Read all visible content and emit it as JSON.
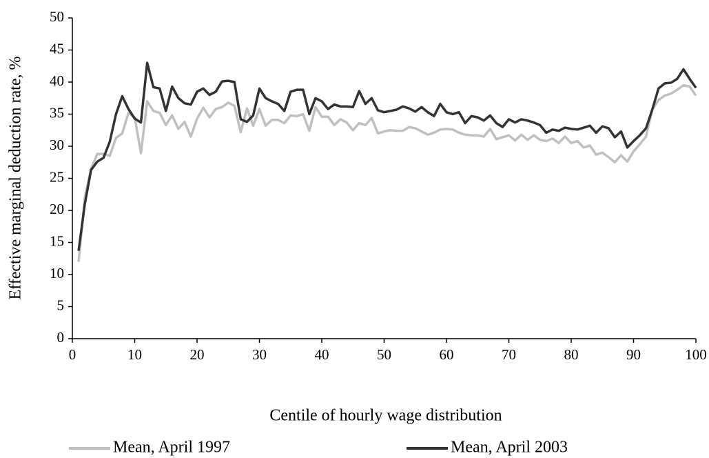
{
  "chart_data": {
    "type": "line",
    "xlabel": "Centile of hourly wage distribution",
    "ylabel": "Effective marginal deduction rate, %",
    "x": [
      1,
      2,
      3,
      4,
      5,
      6,
      7,
      8,
      9,
      10,
      11,
      12,
      13,
      14,
      15,
      16,
      17,
      18,
      19,
      20,
      21,
      22,
      23,
      24,
      25,
      26,
      27,
      28,
      29,
      30,
      31,
      32,
      33,
      34,
      35,
      36,
      37,
      38,
      39,
      40,
      41,
      42,
      43,
      44,
      45,
      46,
      47,
      48,
      49,
      50,
      51,
      52,
      53,
      54,
      55,
      56,
      57,
      58,
      59,
      60,
      61,
      62,
      63,
      64,
      65,
      66,
      67,
      68,
      69,
      70,
      71,
      72,
      73,
      74,
      75,
      76,
      77,
      78,
      79,
      80,
      81,
      82,
      83,
      84,
      85,
      86,
      87,
      88,
      89,
      90,
      91,
      92,
      93,
      94,
      95,
      96,
      97,
      98,
      99,
      100
    ],
    "series": [
      {
        "name": "Mean, April 1997",
        "color": "#c0c0c0",
        "values": [
          12,
          22,
          26.5,
          28.8,
          28.8,
          28.5,
          31.3,
          32,
          35.2,
          34.5,
          28.9,
          37,
          35.5,
          35.2,
          33.3,
          34.8,
          32.7,
          33.8,
          31.5,
          34.3,
          36,
          34.5,
          35.8,
          36.1,
          36.8,
          36.3,
          32.2,
          35.9,
          33.2,
          35.8,
          33.2,
          34.1,
          34.1,
          33.6,
          34.8,
          34.7,
          35,
          32.4,
          36.1,
          34.6,
          34.6,
          33.3,
          34.2,
          33.7,
          32.5,
          33.6,
          33.3,
          34.4,
          32,
          32.3,
          32.5,
          32.4,
          32.4,
          33,
          32.8,
          32.3,
          31.8,
          32.1,
          32.6,
          32.7,
          32.6,
          32.1,
          31.8,
          31.7,
          31.7,
          31.5,
          32.7,
          31.1,
          31.4,
          31.7,
          30.9,
          31.8,
          31,
          31.7,
          31,
          30.8,
          31.2,
          30.5,
          31.5,
          30.5,
          30.8,
          29.8,
          30.1,
          28.7,
          29,
          28.3,
          27.5,
          28.6,
          27.6,
          29.2,
          30.3,
          31.5,
          35.7,
          37.2,
          37.9,
          38.2,
          38.8,
          39.5,
          39.3,
          37.9
        ]
      },
      {
        "name": "Mean, April 2003",
        "color": "#333333",
        "values": [
          13.7,
          21,
          26.3,
          27.6,
          28.2,
          30.7,
          35,
          37.8,
          35.8,
          34.3,
          33.7,
          43,
          39.2,
          39,
          35.5,
          39.3,
          37.5,
          36.7,
          36.5,
          38.5,
          39,
          38,
          38.5,
          40.1,
          40.2,
          40,
          34.2,
          33.8,
          34.8,
          39,
          37.5,
          37,
          36.6,
          35.5,
          38.5,
          38.8,
          38.8,
          35,
          37.5,
          37,
          35.8,
          36.5,
          36.2,
          36.2,
          36.1,
          38.6,
          36.6,
          37.5,
          35.6,
          35.3,
          35.5,
          35.7,
          36.2,
          35.9,
          35.4,
          36.1,
          35.3,
          34.7,
          36.6,
          35.3,
          35,
          35.3,
          33.6,
          34.7,
          34.5,
          34,
          34.8,
          33.6,
          33,
          34.2,
          33.7,
          34.2,
          34,
          33.7,
          33.3,
          32.1,
          32.6,
          32.4,
          32.9,
          32.7,
          32.6,
          32.9,
          33.2,
          32.1,
          33.1,
          32.8,
          31.4,
          32.3,
          29.8,
          30.8,
          31.7,
          32.8,
          35.7,
          39,
          39.8,
          39.9,
          40.5,
          42,
          40.5,
          39.1
        ]
      }
    ],
    "xlim": [
      0,
      100
    ],
    "xticks": [
      0,
      10,
      20,
      30,
      40,
      50,
      60,
      70,
      80,
      90,
      100
    ],
    "ylim": [
      0,
      50
    ],
    "yticks": [
      0,
      5,
      10,
      15,
      20,
      25,
      30,
      35,
      40,
      45,
      50
    ],
    "grid": false,
    "legend": "bottom"
  }
}
